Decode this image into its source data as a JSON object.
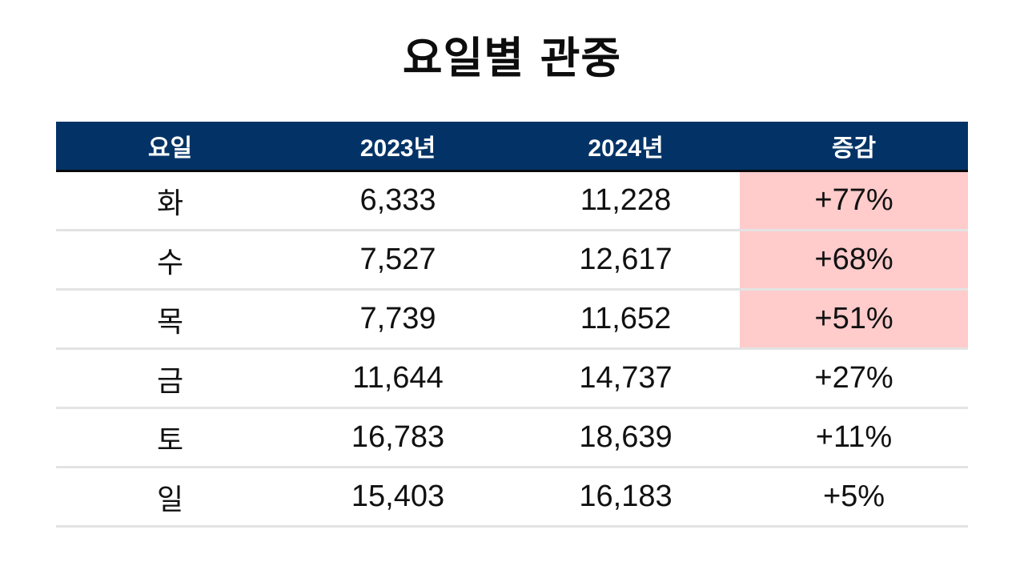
{
  "title": "요일별 관중",
  "table": {
    "headers": [
      "요일",
      "2023년",
      "2024년",
      "증감"
    ],
    "rows": [
      {
        "day": "화",
        "y2023": "6,333",
        "y2024": "11,228",
        "change": "+77%",
        "highlight": true
      },
      {
        "day": "수",
        "y2023": "7,527",
        "y2024": "12,617",
        "change": "+68%",
        "highlight": true
      },
      {
        "day": "목",
        "y2023": "7,739",
        "y2024": "11,652",
        "change": "+51%",
        "highlight": true
      },
      {
        "day": "금",
        "y2023": "11,644",
        "y2024": "14,737",
        "change": "+27%",
        "highlight": false
      },
      {
        "day": "토",
        "y2023": "16,783",
        "y2024": "18,639",
        "change": "+11%",
        "highlight": false
      },
      {
        "day": "일",
        "y2023": "15,403",
        "y2024": "16,183",
        "change": "+5%",
        "highlight": false
      }
    ]
  },
  "colors": {
    "header_bg": "#033366",
    "header_text": "#ffffff",
    "highlight_bg": "#ffcbcb",
    "row_divider": "#e3e3e3"
  }
}
